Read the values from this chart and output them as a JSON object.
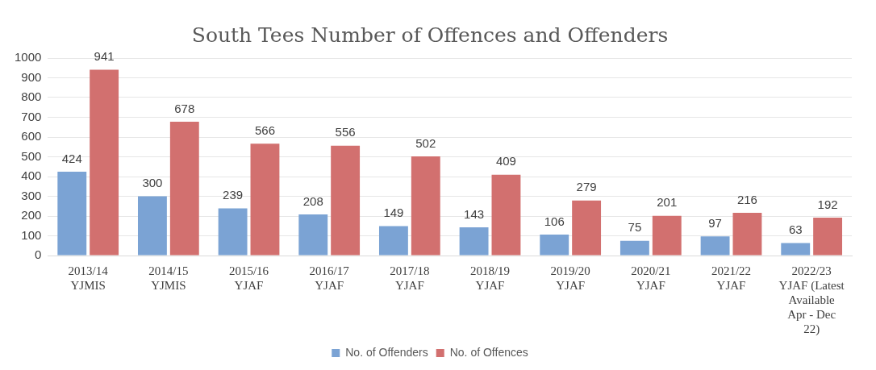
{
  "chart_data": {
    "type": "bar",
    "title": "South Tees Number of Offences and Offenders",
    "categories": [
      "2013/14\nYJMIS",
      "2014/15\nYJMIS",
      "2015/16\nYJAF",
      "2016/17\nYJAF",
      "2017/18\nYJAF",
      "2018/19\nYJAF",
      "2019/20\nYJAF",
      "2020/21\nYJAF",
      "2021/22\nYJAF",
      "2022/23\nYJAF (Latest\nAvailable\nApr - Dec\n22)"
    ],
    "series": [
      {
        "name": "No. of Offenders",
        "color": "#7ba3d4",
        "values": [
          424,
          300,
          239,
          208,
          149,
          143,
          106,
          75,
          97,
          63
        ]
      },
      {
        "name": "No. of Offences",
        "color": "#d2706f",
        "values": [
          941,
          678,
          566,
          556,
          502,
          409,
          279,
          201,
          216,
          192
        ]
      }
    ],
    "ylim": [
      0,
      1000
    ],
    "yticks": [
      0,
      100,
      200,
      300,
      400,
      500,
      600,
      700,
      800,
      900,
      1000
    ],
    "grid": "y",
    "legend": "bottom",
    "data_labels": true
  }
}
